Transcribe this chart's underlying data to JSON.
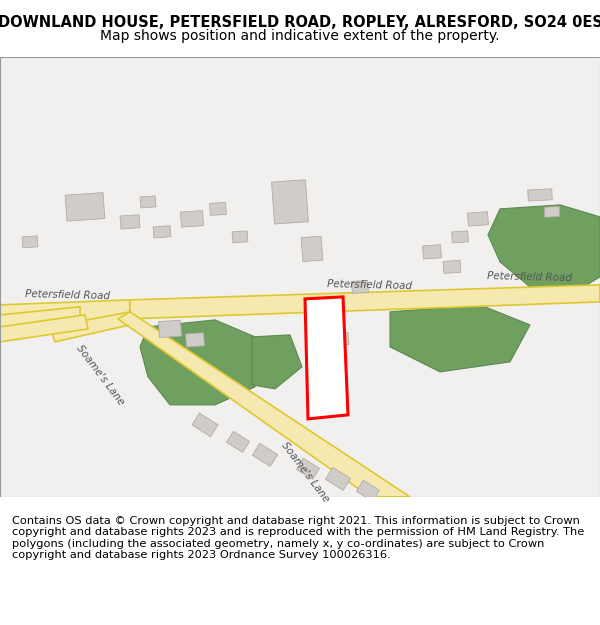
{
  "title_line1": "DOWNLAND HOUSE, PETERSFIELD ROAD, ROPLEY, ALRESFORD, SO24 0ES",
  "title_line2": "Map shows position and indicative extent of the property.",
  "footer_text": "Contains OS data © Crown copyright and database right 2021. This information is subject to Crown copyright and database rights 2023 and is reproduced with the permission of HM Land Registry. The polygons (including the associated geometry, namely x, y co-ordinates) are subject to Crown copyright and database rights 2023 Ordnance Survey 100026316.",
  "map_bg": "#f2f0ee",
  "road_color": "#f5e9b0",
  "road_outline": "#ddc830",
  "building_color": "#d0cdc8",
  "building_outline": "#b0ada8",
  "green_color": "#6fa060",
  "green_outline": "#5a8a50",
  "plot_outline": "#ff0000",
  "road_label_color": "#555555",
  "title_fontsize": 10.5,
  "subtitle_fontsize": 10,
  "footer_fontsize": 8.2,
  "label_fontsize": 7.5
}
